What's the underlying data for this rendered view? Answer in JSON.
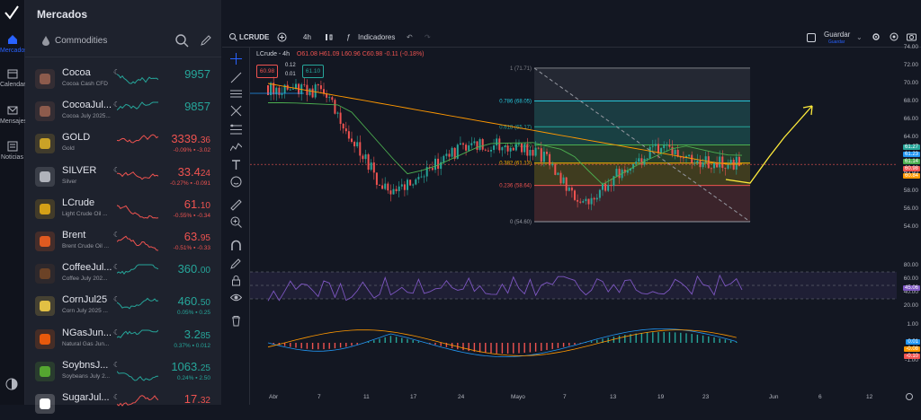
{
  "app": {
    "section_title": "Mercados",
    "category": "Commodities"
  },
  "rail": [
    {
      "label": "Mercados",
      "icon": "home-icon"
    },
    {
      "label": "Calendario",
      "icon": "calendar-icon"
    },
    {
      "label": "Mensajes",
      "icon": "mail-icon"
    },
    {
      "label": "Noticias",
      "icon": "news-icon"
    }
  ],
  "watchlist": [
    {
      "name": "Cocoa",
      "desc": "Cocoa Cash CFD",
      "price": "9957",
      "change": "",
      "dir": "up",
      "moon": true
    },
    {
      "name": "CocoaJul...",
      "desc": "Cocoa July 2025...",
      "price": "9857",
      "change": "",
      "dir": "up",
      "moon": true
    },
    {
      "name": "GOLD",
      "desc": "Gold",
      "price_main": "3339.",
      "price_tail": "36",
      "change": "-0.09%  ▪  -3.02",
      "dir": "dn",
      "moon": false
    },
    {
      "name": "SILVER",
      "desc": "Silver",
      "price_main": "33.4",
      "price_tail": "24",
      "change": "-0.27%  ▪  -0.091",
      "dir": "dn",
      "moon": true
    },
    {
      "name": "LCrude",
      "desc": "Light Crude Oil ...",
      "price_main": "61.",
      "price_tail": "10",
      "change": "-0.55%  ▪  -0.34",
      "dir": "dn",
      "moon": false
    },
    {
      "name": "Brent",
      "desc": "Brent Crude Oil ...",
      "price_main": "63.",
      "price_tail": "95",
      "change": "-0.51%  ▪  -0.33",
      "dir": "dn",
      "moon": true
    },
    {
      "name": "CoffeeJul...",
      "desc": "Coffee July 202...",
      "price_main": "360.",
      "price_tail": "00",
      "change": "",
      "dir": "up",
      "moon": true
    },
    {
      "name": "CornJul25",
      "desc": "Corn July 2025 ...",
      "price_main": "460.",
      "price_tail": "50",
      "change": "0.05%  ▪  0.25",
      "dir": "up",
      "moon": true
    },
    {
      "name": "NGasJun...",
      "desc": "Natural Gas Jun...",
      "price_main": "3.2",
      "price_tail": "85",
      "change": "0.37%  ▪  0.012",
      "dir": "up",
      "moon": true
    },
    {
      "name": "SoybnsJ...",
      "desc": "Soybeans July 2...",
      "price_main": "1063.",
      "price_tail": "25",
      "change": "0.24%  ▪  2.50",
      "dir": "up",
      "moon": true
    },
    {
      "name": "SugarJul...",
      "desc": "",
      "price_main": "17.",
      "price_tail": "32",
      "change": "",
      "dir": "dn",
      "moon": true
    }
  ],
  "toolbar": {
    "symbol": "LCRUDE",
    "interval": "4h",
    "indicators": "Indicadores",
    "save": "Guardar",
    "save_sub": "Guardar"
  },
  "legend": {
    "title": "LCrude - 4h",
    "o": "O61.08",
    "h": "H61.09",
    "l": "L60.96",
    "c": "C60.98",
    "chg": "-0.11 (-0.18%)",
    "sell": "60.98",
    "spread_top": "0.12",
    "spread_bot": "0.01",
    "buy": "61.10"
  },
  "fib": [
    {
      "label": "1 (71.71)"
    },
    {
      "label": "0.786 (68.05)"
    },
    {
      "label": "0.618 (65.17)"
    },
    {
      "label": "0.5 (63.15)"
    },
    {
      "label": "0.382 (61.13)"
    },
    {
      "label": "0.236 (58.64)"
    },
    {
      "label": "0 (54.60)"
    }
  ],
  "price_axis": [
    "74.00",
    "72.00",
    "70.00",
    "68.00",
    "66.00",
    "64.00",
    "62.00",
    "60.00",
    "58.00",
    "56.00",
    "54.00"
  ],
  "price_tags": [
    {
      "v": "61.27",
      "color": "#26a69a"
    },
    {
      "v": "61.23",
      "color": "#2196f3"
    },
    {
      "v": "61.14",
      "color": "#4caf50"
    },
    {
      "v": "60.98",
      "color": "#ef5350"
    },
    {
      "v": "60.84",
      "color": "#ff9800"
    }
  ],
  "rsi_axis": [
    "80.00",
    "60.00",
    "40.00",
    "20.00"
  ],
  "rsi_tag": "45.06",
  "macd_axis": [
    "1.00",
    "0.00",
    "-1.00"
  ],
  "macd_tags": [
    {
      "v": "0.01",
      "color": "#2196f3"
    },
    {
      "v": "-0.08",
      "color": "#ff9800"
    },
    {
      "v": "-0.10",
      "color": "#ef5350"
    }
  ],
  "time_axis": [
    "Abr",
    "7",
    "11",
    "17",
    "24",
    "Mayo",
    "7",
    "13",
    "19",
    "23",
    "Jun",
    "6",
    "12"
  ]
}
